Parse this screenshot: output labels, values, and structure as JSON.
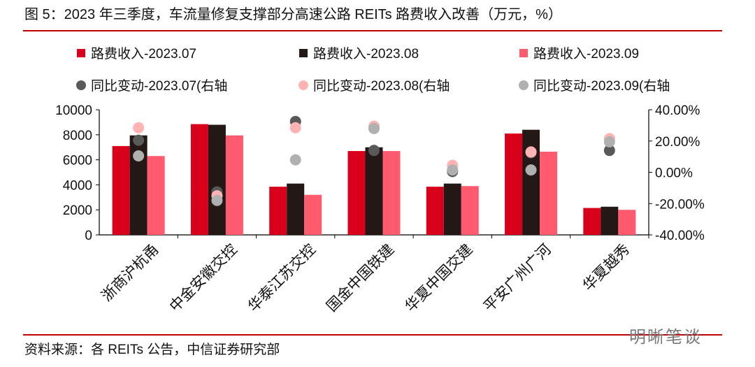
{
  "header": {
    "title": "图 5：2023 年三季度，车流量修复支撑部分高速公路 REITs 路费收入改善（万元，%）"
  },
  "footer": {
    "source": "资料来源：各 REITs 公告，中信证券研究部",
    "watermark": "明晰笔谈"
  },
  "colors": {
    "rev07": "#d9001b",
    "rev08": "#231815",
    "rev09": "#ff5a6e",
    "yoy07": "#595959",
    "yoy08": "#ffb3b3",
    "yoy09": "#b0b0b0",
    "rule": "#c00000"
  },
  "chart_data": {
    "type": "bar",
    "categories": [
      "浙商沪杭甬",
      "中金安徽交控",
      "华泰江苏交控",
      "国金中国铁建",
      "华夏中国交建",
      "平安广州广河",
      "华夏越秀"
    ],
    "series": [
      {
        "name": "路费收入-2023.07",
        "kind": "bar",
        "axis": "left",
        "values": [
          7100,
          8850,
          3850,
          6700,
          3850,
          8100,
          2150
        ]
      },
      {
        "name": "路费收入-2023.08",
        "kind": "bar",
        "axis": "left",
        "values": [
          7950,
          8800,
          4100,
          7000,
          4100,
          8400,
          2250
        ]
      },
      {
        "name": "路费收入-2023.09",
        "kind": "bar",
        "axis": "left",
        "values": [
          6300,
          7950,
          3200,
          6700,
          3900,
          6650,
          2000
        ]
      },
      {
        "name": "同比变动-2023.07(右轴",
        "kind": "scatter",
        "axis": "right",
        "values": [
          20.5,
          -12.5,
          32.5,
          14.0,
          0.5,
          12.5,
          14.0
        ]
      },
      {
        "name": "同比变动-2023.08(右轴",
        "kind": "scatter",
        "axis": "right",
        "values": [
          28.5,
          -15.0,
          28.5,
          29.5,
          4.5,
          13.0,
          21.5
        ]
      },
      {
        "name": "同比变动-2023.09(右轴",
        "kind": "scatter",
        "axis": "right",
        "values": [
          10.5,
          -18.0,
          8.0,
          28.0,
          1.5,
          1.5,
          19.5
        ]
      }
    ],
    "y_left": {
      "min": 0,
      "max": 10000,
      "ticks": [
        "0",
        "2000",
        "4000",
        "6000",
        "8000",
        "10000"
      ]
    },
    "y_right": {
      "min": -40,
      "max": 40,
      "ticks": [
        "-40.00%",
        "-20.00%",
        "0.00%",
        "20.00%",
        "40.00%"
      ]
    },
    "legend": "top",
    "grid": false
  }
}
